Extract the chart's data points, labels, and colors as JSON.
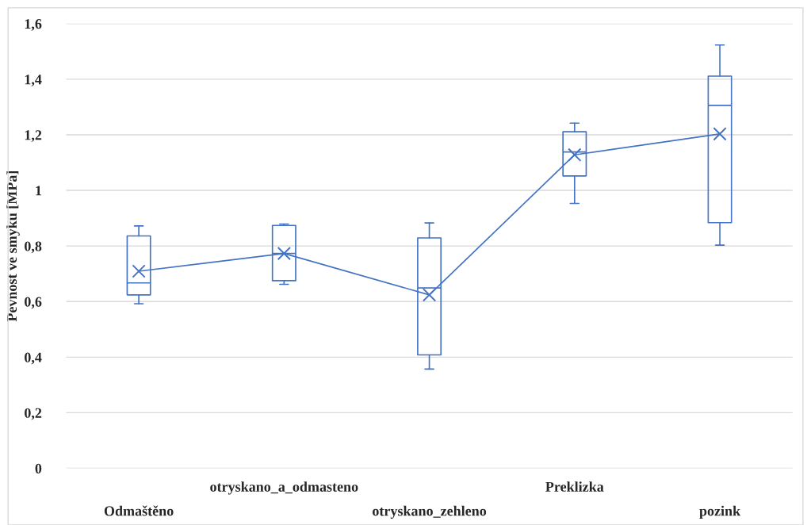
{
  "chart_data": {
    "type": "box",
    "ylabel": "Pevnost ve smyku [MPa]",
    "categories": [
      "Odmaštěno",
      "otryskano_a_odmasteno",
      "otryskano_zehleno",
      "Preklizka",
      "pozink"
    ],
    "color": "#4472c4",
    "boxes": [
      {
        "low": 0.592,
        "q1": 0.624,
        "median": 0.667,
        "q3": 0.836,
        "high": 0.872
      },
      {
        "low": 0.662,
        "q1": 0.675,
        "median": 0.773,
        "q3": 0.874,
        "high": 0.879
      },
      {
        "low": 0.357,
        "q1": 0.408,
        "median": 0.649,
        "q3": 0.829,
        "high": 0.883
      },
      {
        "low": 0.953,
        "q1": 1.052,
        "median": 1.138,
        "q3": 1.211,
        "high": 1.242
      },
      {
        "low": 0.803,
        "q1": 0.884,
        "median": 1.306,
        "q3": 1.411,
        "high": 1.523
      }
    ],
    "series": [
      {
        "type": "line",
        "color": "#4472c4",
        "marker": "cross",
        "values": [
          0.709,
          0.773,
          0.624,
          1.128,
          1.203
        ]
      }
    ],
    "ylim": [
      0,
      1.6
    ],
    "yticks": [
      {
        "value": 0,
        "label": "0"
      },
      {
        "value": 0.2,
        "label": "0,2"
      },
      {
        "value": 0.4,
        "label": "0,4"
      },
      {
        "value": 0.6,
        "label": "0,6"
      },
      {
        "value": 0.8,
        "label": "0,8"
      },
      {
        "value": 1,
        "label": "1"
      },
      {
        "value": 1.2,
        "label": "1,2"
      },
      {
        "value": 1.4,
        "label": "1,4"
      },
      {
        "value": 1.6,
        "label": "1,6"
      }
    ],
    "grid": "y"
  }
}
